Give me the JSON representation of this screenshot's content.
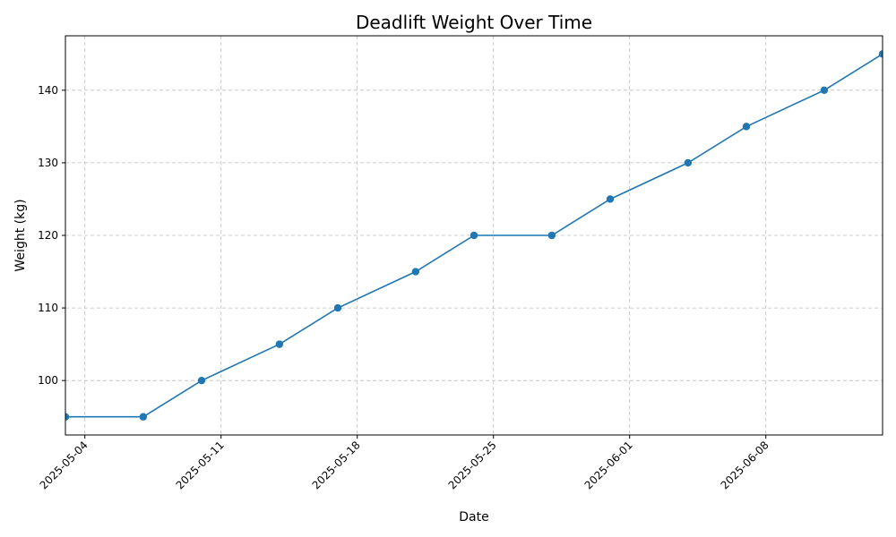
{
  "chart_data": {
    "type": "line",
    "title": "Deadlift Weight Over Time",
    "xlabel": "Date",
    "ylabel": "Weight (kg)",
    "grid": true,
    "x_tick_labels": [
      "2025-05-04",
      "2025-05-11",
      "2025-05-18",
      "2025-05-25",
      "2025-06-01",
      "2025-06-08"
    ],
    "y_ticks": [
      100,
      110,
      120,
      130,
      140
    ],
    "xlim": [
      "2025-05-03",
      "2025-06-14"
    ],
    "ylim": [
      92.5,
      147.5
    ],
    "series": [
      {
        "color": "#1f77b4",
        "points": [
          {
            "x": "2025-05-03",
            "y": 95
          },
          {
            "x": "2025-05-07",
            "y": 95
          },
          {
            "x": "2025-05-10",
            "y": 100
          },
          {
            "x": "2025-05-14",
            "y": 105
          },
          {
            "x": "2025-05-17",
            "y": 110
          },
          {
            "x": "2025-05-21",
            "y": 115
          },
          {
            "x": "2025-05-24",
            "y": 120
          },
          {
            "x": "2025-05-28",
            "y": 120
          },
          {
            "x": "2025-05-31",
            "y": 125
          },
          {
            "x": "2025-06-04",
            "y": 130
          },
          {
            "x": "2025-06-07",
            "y": 135
          },
          {
            "x": "2025-06-11",
            "y": 140
          },
          {
            "x": "2025-06-14",
            "y": 145
          }
        ]
      }
    ]
  }
}
